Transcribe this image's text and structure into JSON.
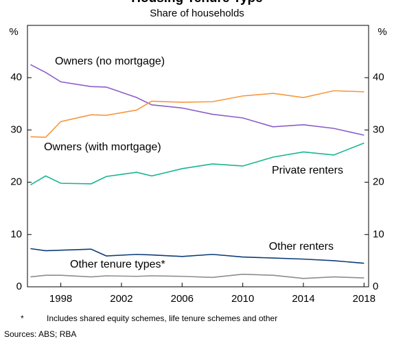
{
  "chart_data": {
    "type": "line",
    "title": "Housing Tenure Type",
    "subtitle": "Share of households",
    "y_unit": "%",
    "y2_unit": "%",
    "x": [
      1996,
      1997,
      1998,
      2000,
      2001,
      2003,
      2004,
      2006,
      2008,
      2010,
      2012,
      2014,
      2016,
      2018
    ],
    "series": [
      {
        "name": "Owners (no mortgage)",
        "color": "#8a5cc8",
        "values": [
          42.5,
          41,
          39.2,
          38.3,
          38.2,
          36.2,
          34.8,
          34.2,
          33,
          32.3,
          30.6,
          31,
          30.3,
          29
        ]
      },
      {
        "name": "Owners (with mortgage)",
        "color": "#f7963c",
        "values": [
          28.7,
          28.6,
          31.6,
          32.9,
          32.8,
          33.8,
          35.5,
          35.3,
          35.4,
          36.5,
          37,
          36.2,
          37.5,
          37.3
        ]
      },
      {
        "name": "Private renters",
        "color": "#17b58d",
        "values": [
          19.5,
          21.2,
          19.8,
          19.7,
          21.1,
          21.9,
          21.2,
          22.6,
          23.5,
          23.1,
          24.8,
          25.8,
          25.2,
          27.5
        ]
      },
      {
        "name": "Other renters",
        "color": "#0b3b78",
        "values": [
          7.3,
          6.9,
          7.0,
          7.2,
          5.9,
          6.2,
          6.1,
          5.8,
          6.2,
          5.7,
          5.5,
          5.3,
          5.0,
          4.5
        ]
      },
      {
        "name": "Other tenure types*",
        "color": "#8c8c8c",
        "values": [
          1.9,
          2.2,
          2.2,
          1.9,
          2.1,
          2.0,
          2.1,
          2.0,
          1.8,
          2.4,
          2.2,
          1.6,
          1.9,
          1.7
        ]
      }
    ],
    "xlim": [
      1995.8,
      2018.3
    ],
    "xticks": [
      1998,
      2002,
      2006,
      2010,
      2014,
      2018
    ],
    "ylim": [
      0,
      50
    ],
    "yticks": [
      0,
      10,
      20,
      30,
      40
    ],
    "y2lim": [
      0,
      50
    ],
    "y2ticks": [
      0,
      10,
      20,
      30,
      40
    ],
    "footnote_marker": "*",
    "footnote": "Includes shared equity schemes, life tenure schemes and other",
    "sources": "Sources: ABS; RBA"
  }
}
